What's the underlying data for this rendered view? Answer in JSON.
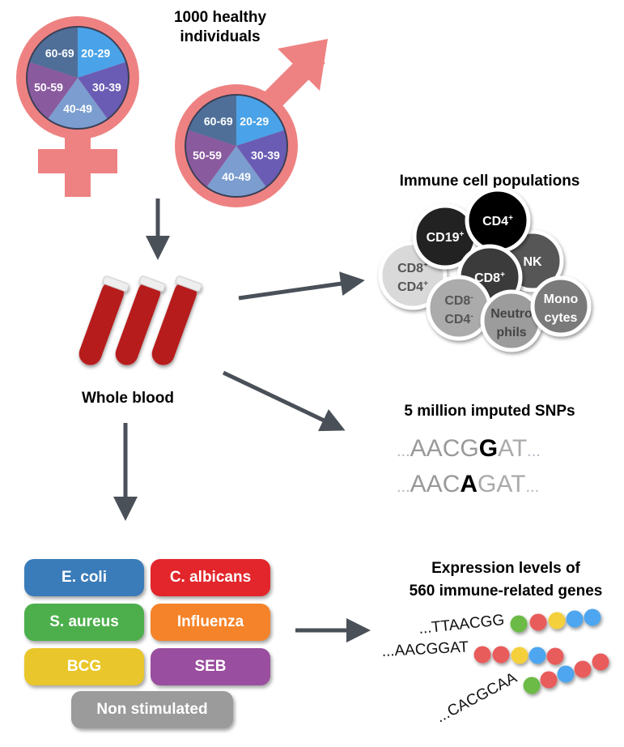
{
  "cohort": {
    "title_line1": "1000 healthy",
    "title_line2": "individuals",
    "age_groups": [
      "20-29",
      "30-39",
      "40-49",
      "50-59",
      "60-69"
    ],
    "age_colors": [
      "#4aa3e8",
      "#6a5cb4",
      "#7b9dd0",
      "#8a5a9f",
      "#4f6f99"
    ],
    "symbol_color": "#ee8282"
  },
  "sample": {
    "label": "Whole blood"
  },
  "immune": {
    "title": "Immune cell populations",
    "cells": [
      {
        "l1": "CD19",
        "s1": "+",
        "l2": "",
        "s2": "",
        "color": "#232323",
        "text": "#fff"
      },
      {
        "l1": "CD4",
        "s1": "+",
        "l2": "",
        "s2": "",
        "color": "#050505",
        "text": "#fff"
      },
      {
        "l1": "NK",
        "s1": "",
        "l2": "",
        "s2": "",
        "color": "#575757",
        "text": "#fff"
      },
      {
        "l1": "CD8",
        "s1": "+",
        "l2": "",
        "s2": "",
        "color": "#3b3b3b",
        "text": "#fff"
      },
      {
        "l1": "CD8",
        "s1": "+",
        "l2": "CD4",
        "s2": "+",
        "color": "#d9d9d9",
        "text": "#555"
      },
      {
        "l1": "CD8",
        "s1": "-",
        "l2": "CD4",
        "s2": "-",
        "color": "#ababab",
        "text": "#555"
      },
      {
        "l1": "Neutro",
        "s1": "",
        "l2": "phils",
        "s2": "",
        "color": "#9c9c9c",
        "text": "#444"
      },
      {
        "l1": "Mono",
        "s1": "",
        "l2": "cytes",
        "s2": "",
        "color": "#7a7a7a",
        "text": "#fff"
      }
    ]
  },
  "snps": {
    "title": "5 million imputed SNPs",
    "seq1": {
      "pre": "AACG",
      "alt": "G",
      "post": "AT"
    },
    "seq2": {
      "pre": "AAC",
      "alt": "A",
      "post": "GAT"
    },
    "dots": "..."
  },
  "stimuli": {
    "items": [
      {
        "label": "E. coli",
        "color": "#3a7bb9"
      },
      {
        "label": "C. albicans",
        "color": "#e2262b"
      },
      {
        "label": "S. aureus",
        "color": "#4caf4c"
      },
      {
        "label": "Influenza",
        "color": "#f5832a"
      },
      {
        "label": "BCG",
        "color": "#e9c62b"
      },
      {
        "label": "SEB",
        "color": "#9a4e9f"
      },
      {
        "label": "Non stimulated",
        "color": "#9b9b9b"
      }
    ]
  },
  "expression": {
    "title_line1": "Expression levels of",
    "title_line2": "560 immune-related genes",
    "sequences": [
      "...TTAACGG",
      "...AACGGAT",
      "...CACGCAA"
    ],
    "bead_colors": {
      "green": "#6cbb47",
      "red": "#e95c5c",
      "yellow": "#f5d03c",
      "blue": "#4ea6ef"
    }
  }
}
